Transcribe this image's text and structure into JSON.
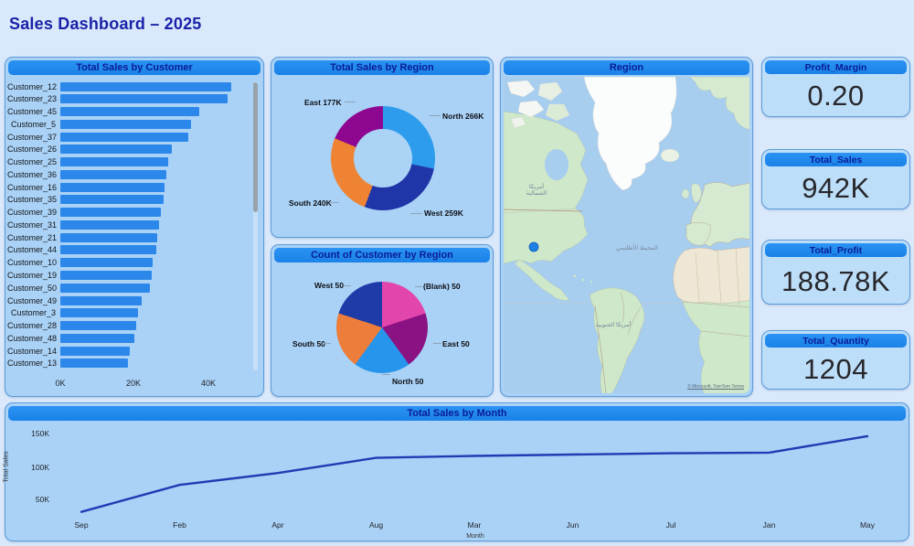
{
  "page_title": "Sales Dashboard – 2025",
  "colors": {
    "page_bg": "#d9e9fb",
    "panel_bg": "#a9d2f6",
    "card_bg": "#bddef9",
    "header_bar": "#1e8bef",
    "title_text": "#1a22a8",
    "bar": "#2b87ea",
    "line": "#1e3cb4",
    "donut_north": "#2d9cec",
    "donut_west": "#1f35a8",
    "donut_south": "#ee8433",
    "donut_east": "#8e0790",
    "pie_blank": "#e246ac",
    "pie_east": "#8a1283",
    "pie_north": "#2795ec",
    "pie_south": "#ed7d3a",
    "pie_west": "#1f3ba8"
  },
  "chart_data": [
    {
      "id": "total_sales_by_customer",
      "type": "bar",
      "orientation": "horizontal",
      "title": "Total Sales by Customer",
      "categories": [
        "Customer_12",
        "Customer_23",
        "Customer_45",
        "Customer_5",
        "Customer_37",
        "Customer_26",
        "Customer_25",
        "Customer_36",
        "Customer_16",
        "Customer_35",
        "Customer_39",
        "Customer_31",
        "Customer_21",
        "Customer_44",
        "Customer_10",
        "Customer_19",
        "Customer_50",
        "Customer_49",
        "Customer_3",
        "Customer_28",
        "Customer_48",
        "Customer_14",
        "Customer_13"
      ],
      "values_k": [
        46.4,
        45.2,
        37.6,
        35.4,
        34.6,
        30.2,
        29.2,
        28.7,
        28.3,
        28.0,
        27.3,
        26.8,
        26.3,
        26.0,
        25.1,
        24.8,
        24.3,
        22.1,
        21.1,
        20.6,
        20.1,
        18.7,
        18.4
      ],
      "x_ticks": [
        "0K",
        "20K",
        "40K"
      ],
      "xlim_k": [
        0,
        51
      ],
      "scrollable": true
    },
    {
      "id": "total_sales_by_region",
      "type": "donut",
      "title": "Total Sales by Region",
      "slices": [
        {
          "label": "North",
          "value_k": 266,
          "display": "North 266K",
          "color": "#2d9cec"
        },
        {
          "label": "West",
          "value_k": 259,
          "display": "West 259K",
          "color": "#1f35a8"
        },
        {
          "label": "South",
          "value_k": 240,
          "display": "South 240K",
          "color": "#ee8433"
        },
        {
          "label": "East",
          "value_k": 177,
          "display": "East 177K",
          "color": "#8e0790"
        }
      ],
      "total_k": 942
    },
    {
      "id": "count_of_customer_by_region",
      "type": "pie",
      "title": "Count of Customer by Region",
      "slices": [
        {
          "label": "(Blank)",
          "value": 50,
          "display": "(Blank) 50",
          "color": "#e246ac"
        },
        {
          "label": "East",
          "value": 50,
          "display": "East 50",
          "color": "#8a1283"
        },
        {
          "label": "North",
          "value": 50,
          "display": "North 50",
          "color": "#2795ec"
        },
        {
          "label": "South",
          "value": 50,
          "display": "South 50",
          "color": "#ed7d3a"
        },
        {
          "label": "West",
          "value": 50,
          "display": "West 50",
          "color": "#1f3ba8"
        }
      ]
    },
    {
      "id": "total_sales_by_month",
      "type": "line",
      "title": "Total Sales by Month",
      "x": [
        "Sep",
        "Feb",
        "Apr",
        "Aug",
        "Mar",
        "Jun",
        "Jul",
        "Jan",
        "May"
      ],
      "values_k": [
        31,
        72,
        90,
        113,
        116,
        118,
        120,
        121,
        146
      ],
      "xlabel": "Month",
      "ylabel": "Total Sales",
      "y_ticks": [
        "50K",
        "100K",
        "150K"
      ],
      "ylim_k": [
        0,
        170
      ],
      "grid": false,
      "legend": "none"
    }
  ],
  "kpi_cards": [
    {
      "label": "Profit_Margin",
      "value": "0.20"
    },
    {
      "label": "Total_Sales",
      "value": "942K"
    },
    {
      "label": "Total_Profit",
      "value": "188.78K"
    },
    {
      "label": "Total_Quantity",
      "value": "1204"
    }
  ],
  "map": {
    "title": "Region",
    "labels": {
      "north_america": "أمريكا الشمالية",
      "atlantic_ocean": "المحيط الأطلسي",
      "south_america": "أمريكا الجنوبية"
    },
    "attribution": "© Microsoft, TomTom  Terms"
  }
}
